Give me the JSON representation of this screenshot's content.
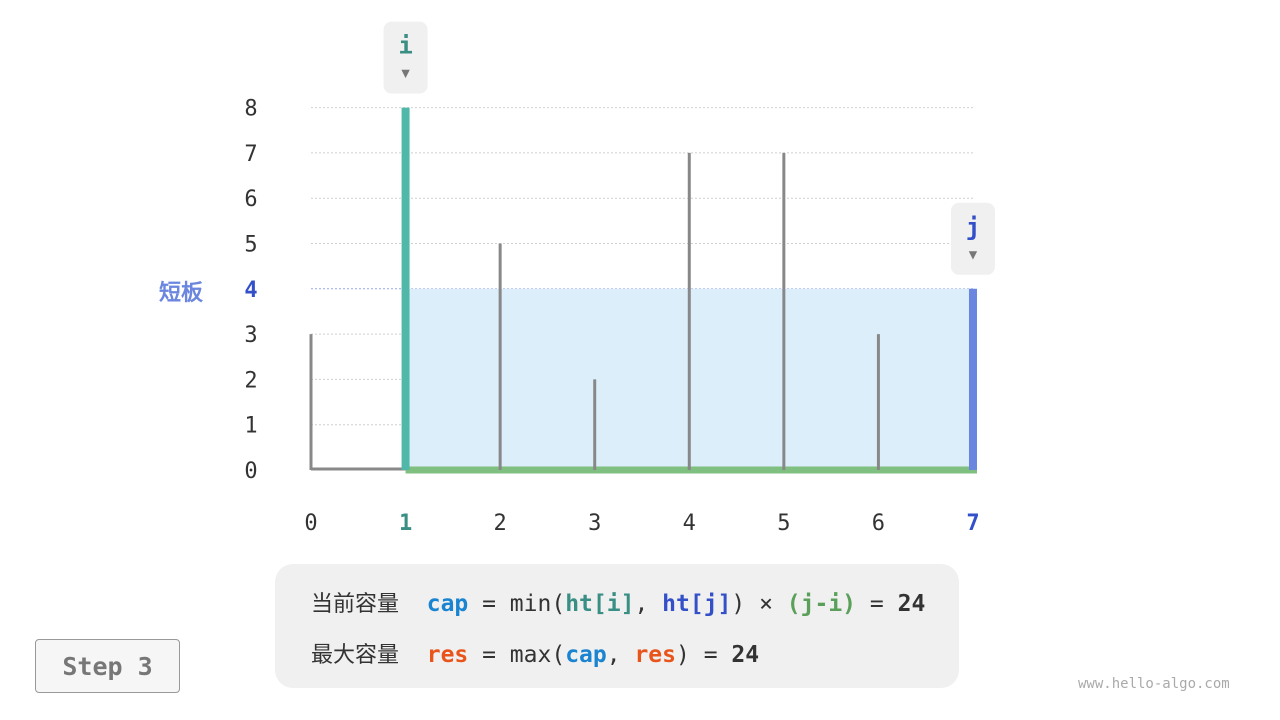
{
  "chart_data": {
    "type": "bar",
    "categories": [
      "0",
      "1",
      "2",
      "3",
      "4",
      "5",
      "6",
      "7"
    ],
    "values": [
      3,
      8,
      5,
      2,
      7,
      7,
      3,
      4
    ],
    "yticks": [
      "0",
      "1",
      "2",
      "3",
      "4",
      "5",
      "6",
      "7",
      "8"
    ],
    "ylim": [
      0,
      8
    ],
    "grid": true,
    "pointer_i": {
      "label": "i",
      "index": 1
    },
    "pointer_j": {
      "label": "j",
      "index": 7
    },
    "short_board": {
      "label": "短板",
      "value": 4
    },
    "colors": {
      "i": "#4fb8a9",
      "j": "#6b86df",
      "water": "#dbeefa",
      "base": "#7fbf7f",
      "bar": "#888888",
      "i_text": "#3a8f84",
      "j_text": "#3350c8"
    }
  },
  "formula": {
    "line1": {
      "label": "当前容量",
      "var": "cap",
      "eq": " = min(",
      "a": "ht[i]",
      "comma": ", ",
      "b": "ht[j]",
      "close": ") × ",
      "c": "(j-i)",
      "eq2": " = ",
      "result": "24"
    },
    "line2": {
      "label": "最大容量",
      "var": "res",
      "eq": " = max(",
      "a": "cap",
      "comma": ", ",
      "b": "res",
      "close": ") = ",
      "result": "24"
    }
  },
  "step_label": "Step 3",
  "watermark": "www.hello-algo.com"
}
